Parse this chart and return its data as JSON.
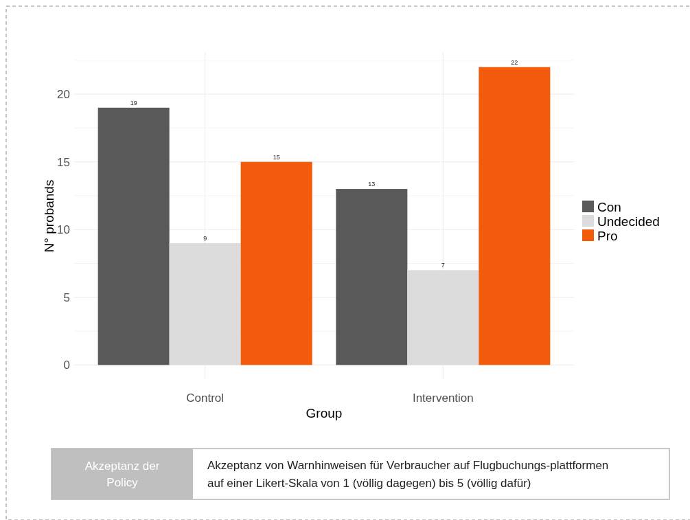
{
  "chart_data": {
    "type": "bar",
    "xlabel": "Group",
    "ylabel": "N° probands",
    "legend": "right",
    "grid": true,
    "data_labels": true,
    "categories": [
      "Control",
      "Intervention"
    ],
    "series": [
      {
        "name": "Con",
        "color": "#595959",
        "values": [
          19,
          13
        ]
      },
      {
        "name": "Undecided",
        "color": "#dcdcdc",
        "values": [
          9,
          7
        ]
      },
      {
        "name": "Pro",
        "color": "#f25a0c",
        "values": [
          15,
          22
        ]
      }
    ],
    "ylim": [
      -1.1,
      23.1
    ],
    "yticks": [
      0,
      {
        "value": 2.5,
        "label": null
      },
      5,
      {
        "value": 7.5,
        "label": null
      },
      10,
      {
        "value": 12.5,
        "label": null
      },
      15,
      {
        "value": 17.5,
        "label": null
      },
      20,
      {
        "value": 22.5,
        "label": null
      }
    ],
    "annotations": [
      "Akzeptanz der Policy",
      "Akzeptanz von Warnhinweisen für Verbraucher auf Flugbuchungs-plattformen auf einer Likert-Skala von 1 (völlig dagegen) bis 5 (völlig dafür)"
    ]
  }
}
